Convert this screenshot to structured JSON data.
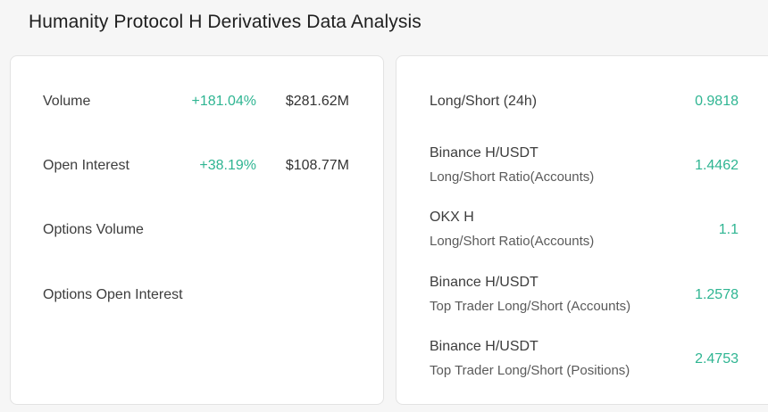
{
  "title": "Humanity Protocol H Derivatives Data Analysis",
  "left_panel": {
    "rows": [
      {
        "label": "Volume",
        "change": "+181.04%",
        "value": "$281.62M"
      },
      {
        "label": "Open Interest",
        "change": "+38.19%",
        "value": "$108.77M"
      },
      {
        "label": "Options Volume",
        "change": "",
        "value": ""
      },
      {
        "label": "Options Open Interest",
        "change": "",
        "value": ""
      }
    ]
  },
  "right_panel": {
    "rows": [
      {
        "line1": "Long/Short (24h)",
        "line2": "",
        "value": "0.9818"
      },
      {
        "line1": "Binance H/USDT",
        "line2": "Long/Short Ratio(Accounts)",
        "value": "1.4462"
      },
      {
        "line1": "OKX H",
        "line2": "Long/Short Ratio(Accounts)",
        "value": "1.1"
      },
      {
        "line1": "Binance H/USDT",
        "line2": "Top Trader Long/Short (Accounts)",
        "value": "1.2578"
      },
      {
        "line1": "Binance H/USDT",
        "line2": "Top Trader Long/Short (Positions)",
        "value": "2.4753"
      }
    ]
  },
  "colors": {
    "positive": "#2fb592",
    "background": "#f6f6f6",
    "card": "#ffffff"
  }
}
